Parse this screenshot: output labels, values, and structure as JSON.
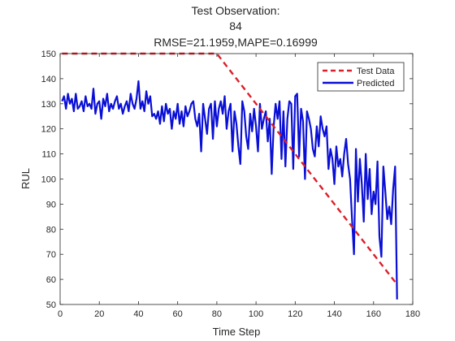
{
  "chart_data": {
    "type": "line",
    "title_lines": [
      "Test Observation:",
      "84",
      "RMSE=21.1959,MAPE=0.16999"
    ],
    "xlabel": "Time Step",
    "ylabel": "RUL",
    "xlim": [
      0,
      180
    ],
    "ylim": [
      50,
      150
    ],
    "xticks": [
      0,
      20,
      40,
      60,
      80,
      100,
      120,
      140,
      160,
      180
    ],
    "yticks": [
      50,
      60,
      70,
      80,
      90,
      100,
      110,
      120,
      130,
      140,
      150
    ],
    "grid": false,
    "legend_position": "top-right",
    "series": [
      {
        "name": "Test Data",
        "style": "dashed",
        "color": "#d9202a",
        "x": [
          1,
          2,
          3,
          4,
          5,
          6,
          7,
          8,
          9,
          10,
          11,
          12,
          13,
          14,
          15,
          16,
          17,
          18,
          19,
          20,
          21,
          22,
          23,
          24,
          25,
          26,
          27,
          28,
          29,
          30,
          31,
          32,
          33,
          34,
          35,
          36,
          37,
          38,
          39,
          40,
          41,
          42,
          43,
          44,
          45,
          46,
          47,
          48,
          49,
          50,
          51,
          52,
          53,
          54,
          55,
          56,
          57,
          58,
          59,
          60,
          61,
          62,
          63,
          64,
          65,
          66,
          67,
          68,
          69,
          70,
          71,
          72,
          73,
          74,
          75,
          76,
          77,
          78,
          79,
          80,
          81,
          82,
          83,
          84,
          85,
          86,
          87,
          88,
          89,
          90,
          91,
          92,
          93,
          94,
          95,
          96,
          97,
          98,
          99,
          100,
          101,
          102,
          103,
          104,
          105,
          106,
          107,
          108,
          109,
          110,
          111,
          112,
          113,
          114,
          115,
          116,
          117,
          118,
          119,
          120,
          121,
          122,
          123,
          124,
          125,
          126,
          127,
          128,
          129,
          130,
          131,
          132,
          133,
          134,
          135,
          136,
          137,
          138,
          139,
          140,
          141,
          142,
          143,
          144,
          145,
          146,
          147,
          148,
          149,
          150,
          151,
          152,
          153,
          154,
          155,
          156,
          157,
          158,
          159,
          160,
          161,
          162,
          163,
          164,
          165,
          166,
          167,
          168,
          169,
          170,
          171,
          172
        ],
        "y": [
          150,
          150,
          150,
          150,
          150,
          150,
          150,
          150,
          150,
          150,
          150,
          150,
          150,
          150,
          150,
          150,
          150,
          150,
          150,
          150,
          150,
          150,
          150,
          150,
          150,
          150,
          150,
          150,
          150,
          150,
          150,
          150,
          150,
          150,
          150,
          150,
          150,
          150,
          150,
          150,
          150,
          150,
          150,
          150,
          150,
          150,
          150,
          150,
          150,
          150,
          150,
          150,
          150,
          150,
          150,
          150,
          150,
          150,
          150,
          150,
          150,
          150,
          150,
          150,
          150,
          150,
          150,
          150,
          150,
          150,
          150,
          150,
          150,
          150,
          150,
          150,
          150,
          150,
          150,
          150,
          149,
          148,
          147,
          146,
          145,
          144,
          143,
          142,
          141,
          140,
          139,
          138,
          137,
          136,
          135,
          134,
          133,
          132,
          131,
          130,
          129,
          128,
          127,
          126,
          125,
          124,
          123,
          122,
          121,
          120,
          119,
          118,
          117,
          116,
          115,
          114,
          113,
          112,
          111,
          110,
          109,
          108,
          107,
          106,
          105,
          104,
          103,
          102,
          101,
          100,
          99,
          98,
          97,
          96,
          95,
          94,
          93,
          92,
          91,
          90,
          89,
          88,
          87,
          86,
          85,
          84,
          83,
          82,
          81,
          80,
          79,
          78,
          77,
          76,
          75,
          74,
          73,
          72,
          71,
          70,
          69,
          68,
          67,
          66,
          65,
          64,
          63,
          62,
          61,
          60,
          59,
          58
        ]
      },
      {
        "name": "Predicted",
        "style": "solid",
        "color": "#0a0fd6",
        "x": [
          1,
          2,
          3,
          4,
          5,
          6,
          7,
          8,
          9,
          10,
          11,
          12,
          13,
          14,
          15,
          16,
          17,
          18,
          19,
          20,
          21,
          22,
          23,
          24,
          25,
          26,
          27,
          28,
          29,
          30,
          31,
          32,
          33,
          34,
          35,
          36,
          37,
          38,
          39,
          40,
          41,
          42,
          43,
          44,
          45,
          46,
          47,
          48,
          49,
          50,
          51,
          52,
          53,
          54,
          55,
          56,
          57,
          58,
          59,
          60,
          61,
          62,
          63,
          64,
          65,
          66,
          67,
          68,
          69,
          70,
          71,
          72,
          73,
          74,
          75,
          76,
          77,
          78,
          79,
          80,
          81,
          82,
          83,
          84,
          85,
          86,
          87,
          88,
          89,
          90,
          91,
          92,
          93,
          94,
          95,
          96,
          97,
          98,
          99,
          100,
          101,
          102,
          103,
          104,
          105,
          106,
          107,
          108,
          109,
          110,
          111,
          112,
          113,
          114,
          115,
          116,
          117,
          118,
          119,
          120,
          121,
          122,
          123,
          124,
          125,
          126,
          127,
          128,
          129,
          130,
          131,
          132,
          133,
          134,
          135,
          136,
          137,
          138,
          139,
          140,
          141,
          142,
          143,
          144,
          145,
          146,
          147,
          148,
          149,
          150,
          151,
          152,
          153,
          154,
          155,
          156,
          157,
          158,
          159,
          160,
          161,
          162,
          163,
          164,
          165,
          166,
          167,
          168,
          169,
          170,
          171,
          172
        ],
        "y": [
          131,
          133,
          128,
          134,
          130,
          132,
          127,
          134,
          128,
          129,
          131,
          127,
          133,
          129,
          130,
          128,
          136,
          126,
          130,
          131,
          124,
          132,
          129,
          134,
          127,
          130,
          128,
          131,
          133,
          128,
          130,
          126,
          129,
          131,
          127,
          134,
          130,
          128,
          132,
          139,
          128,
          131,
          127,
          135,
          130,
          133,
          125,
          126,
          124,
          127,
          122,
          129,
          123,
          130,
          126,
          128,
          120,
          127,
          124,
          130,
          122,
          127,
          121,
          129,
          125,
          127,
          130,
          131,
          124,
          121,
          126,
          111,
          130,
          124,
          118,
          128,
          130,
          116,
          131,
          121,
          128,
          131,
          126,
          133,
          120,
          127,
          130,
          111,
          127,
          122,
          113,
          106,
          131,
          127,
          117,
          112,
          126,
          119,
          128,
          121,
          111,
          130,
          120,
          124,
          127,
          115,
          124,
          102,
          121,
          130,
          124,
          131,
          108,
          127,
          105,
          124,
          131,
          130,
          104,
          133,
          134,
          109,
          128,
          123,
          100,
          127,
          124,
          120,
          112,
          109,
          121,
          113,
          125,
          120,
          117,
          121,
          104,
          112,
          108,
          98,
          113,
          105,
          108,
          101,
          110,
          116,
          106,
          100,
          84,
          70,
          112,
          91,
          108,
          98,
          83,
          110,
          92,
          104,
          86,
          95,
          90,
          107,
          77,
          69,
          105,
          95,
          84,
          89,
          82,
          96,
          105,
          52
        ]
      }
    ]
  }
}
